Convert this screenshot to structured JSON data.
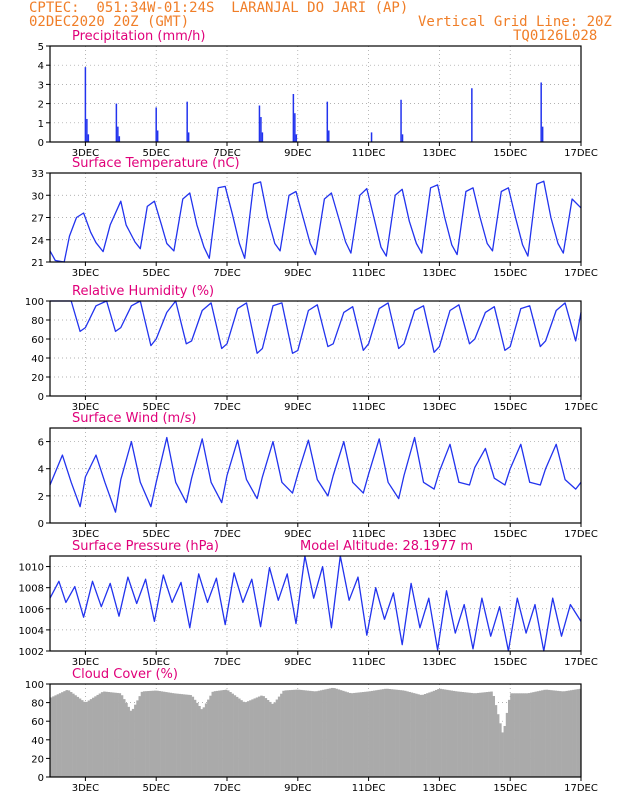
{
  "header": {
    "line1": "CPTEC:  051:34W-01:24S  LARANJAL DO JARI (AP)",
    "line2_left": "02DEC2020 20Z (GMT)",
    "line2_right": "Vertical Grid Line: 20Z",
    "line3_right": "TQ0126L028"
  },
  "colors": {
    "header": "#f07e28",
    "title": "#e0007a",
    "series": "#2233ee",
    "cloud": "#aaaaaa",
    "grid": "#999999",
    "axis": "#000000"
  },
  "time_axis": {
    "start": "02DEC2020 20Z",
    "end": "17DEC2020 20Z",
    "tick_labels": [
      "3DEC",
      "5DEC",
      "7DEC",
      "9DEC",
      "11DEC",
      "13DEC",
      "15DEC",
      "17DEC"
    ]
  },
  "chart_data": [
    {
      "type": "bar",
      "title": "Precipitation (mm/h)",
      "ylim": [
        0,
        5
      ],
      "yticks": [
        0,
        1,
        2,
        3,
        4,
        5
      ],
      "grid": true,
      "color": "#2233ee",
      "x": [
        "03DEC 20Z",
        "03DEC 21Z",
        "03DEC 22Z",
        "04DEC 17Z",
        "04DEC 18Z",
        "04DEC 19Z",
        "05DEC 20Z",
        "05DEC 21Z",
        "06DEC 17Z",
        "06DEC 18Z",
        "08DEC 18Z",
        "08DEC 19Z",
        "08DEC 20Z",
        "09DEC 17Z",
        "09DEC 18Z",
        "09DEC 19Z",
        "10DEC 16Z",
        "10DEC 17Z",
        "11DEC 22Z",
        "12DEC 18Z",
        "12DEC 19Z",
        "14DEC 18Z",
        "16DEC 17Z",
        "16DEC 18Z"
      ],
      "values": [
        3.9,
        1.2,
        0.4,
        2.0,
        0.8,
        0.3,
        1.8,
        0.6,
        2.1,
        0.5,
        1.9,
        1.3,
        0.5,
        2.5,
        1.5,
        0.4,
        2.1,
        0.6,
        0.5,
        2.2,
        0.4,
        2.8,
        3.1,
        0.8
      ]
    },
    {
      "type": "line",
      "title": "Surface Temperature (nC)",
      "ylim": [
        21,
        33
      ],
      "yticks": [
        21,
        24,
        27,
        30,
        33
      ],
      "grid": true,
      "color": "#2233ee",
      "x_days": [
        0,
        0.15,
        0.4,
        0.55,
        0.75,
        0.95,
        1.15,
        1.3,
        1.5,
        1.7,
        2.0,
        2.15,
        2.4,
        2.55,
        2.75,
        2.95,
        3.15,
        3.3,
        3.5,
        3.75,
        3.95,
        4.15,
        4.35,
        4.5,
        4.75,
        4.95,
        5.15,
        5.35,
        5.5,
        5.75,
        5.95,
        6.15,
        6.35,
        6.5,
        6.75,
        6.95,
        7.15,
        7.35,
        7.5,
        7.75,
        7.95,
        8.15,
        8.35,
        8.5,
        8.75,
        8.95,
        9.15,
        9.35,
        9.5,
        9.75,
        9.95,
        10.15,
        10.35,
        10.5,
        10.75,
        10.95,
        11.15,
        11.35,
        11.5,
        11.75,
        11.95,
        12.15,
        12.35,
        12.5,
        12.75,
        12.95,
        13.15,
        13.35,
        13.5,
        13.75,
        13.95,
        14.15,
        14.35,
        14.5,
        14.75,
        15.0
      ],
      "y": [
        22.5,
        21.2,
        20.9,
        24.5,
        27.0,
        27.6,
        25.0,
        23.6,
        22.4,
        26.0,
        29.2,
        26.0,
        23.7,
        22.8,
        28.5,
        29.2,
        26.0,
        23.5,
        22.5,
        29.5,
        30.3,
        26.0,
        23.0,
        21.5,
        31.0,
        31.2,
        27.5,
        23.5,
        21.5,
        31.5,
        31.8,
        27.0,
        23.5,
        22.5,
        30.0,
        30.5,
        27.0,
        23.5,
        22.0,
        29.5,
        30.3,
        27.0,
        23.7,
        22.2,
        30.0,
        30.9,
        27.0,
        23.0,
        21.8,
        30.0,
        30.8,
        26.5,
        23.5,
        22.2,
        31.0,
        31.4,
        27.0,
        23.3,
        22.0,
        30.5,
        31.0,
        27.0,
        23.5,
        22.5,
        30.5,
        31.0,
        27.0,
        23.3,
        21.8,
        31.5,
        31.9,
        27.0,
        23.5,
        22.2,
        29.5,
        28.3
      ]
    },
    {
      "type": "line",
      "title": "Relative Humidity (%)",
      "ylim": [
        0,
        100
      ],
      "yticks": [
        0,
        20,
        40,
        60,
        80,
        100
      ],
      "grid": true,
      "color": "#2233ee",
      "x_days": [
        0,
        0.3,
        0.6,
        0.85,
        1.0,
        1.3,
        1.6,
        1.85,
        2.0,
        2.3,
        2.55,
        2.85,
        3.0,
        3.3,
        3.55,
        3.85,
        4.0,
        4.3,
        4.55,
        4.85,
        5.0,
        5.3,
        5.55,
        5.85,
        6.0,
        6.3,
        6.55,
        6.85,
        7.0,
        7.3,
        7.55,
        7.85,
        8.0,
        8.3,
        8.55,
        8.85,
        9.0,
        9.3,
        9.55,
        9.85,
        10.0,
        10.3,
        10.55,
        10.85,
        11.0,
        11.3,
        11.55,
        11.85,
        12.0,
        12.3,
        12.55,
        12.85,
        13.0,
        13.3,
        13.55,
        13.85,
        14.0,
        14.3,
        14.55,
        14.85,
        15.0
      ],
      "y": [
        100,
        100,
        100,
        68,
        72,
        95,
        100,
        68,
        72,
        95,
        100,
        53,
        60,
        88,
        100,
        55,
        58,
        90,
        98,
        50,
        55,
        92,
        98,
        45,
        50,
        95,
        98,
        45,
        48,
        90,
        96,
        52,
        55,
        88,
        94,
        48,
        55,
        92,
        98,
        50,
        55,
        90,
        95,
        46,
        52,
        90,
        96,
        55,
        60,
        88,
        94,
        48,
        52,
        92,
        95,
        52,
        58,
        90,
        98,
        58,
        88
      ]
    },
    {
      "type": "line",
      "title": "Surface Wind (m/s)",
      "ylim": [
        0,
        7
      ],
      "yticks": [
        0,
        2,
        4,
        6
      ],
      "grid": true,
      "color": "#2233ee",
      "x_days": [
        0,
        0.35,
        0.6,
        0.85,
        1.0,
        1.3,
        1.55,
        1.85,
        2.0,
        2.3,
        2.55,
        2.85,
        3.0,
        3.3,
        3.55,
        3.85,
        4.0,
        4.3,
        4.55,
        4.85,
        5.0,
        5.3,
        5.55,
        5.85,
        6.0,
        6.3,
        6.55,
        6.85,
        7.0,
        7.3,
        7.55,
        7.85,
        8.0,
        8.3,
        8.55,
        8.85,
        9.0,
        9.3,
        9.55,
        9.85,
        10.0,
        10.3,
        10.55,
        10.85,
        11.0,
        11.3,
        11.55,
        11.85,
        12.0,
        12.3,
        12.55,
        12.85,
        13.0,
        13.3,
        13.55,
        13.85,
        14.0,
        14.3,
        14.55,
        14.85,
        15.0
      ],
      "y": [
        2.8,
        5.0,
        3.0,
        1.2,
        3.4,
        5.0,
        3.0,
        0.8,
        3.2,
        6.0,
        3.0,
        1.2,
        3.0,
        6.3,
        3.0,
        1.5,
        3.3,
        6.2,
        3.0,
        1.5,
        3.5,
        6.1,
        3.2,
        1.8,
        3.4,
        6.0,
        3.0,
        2.2,
        3.6,
        6.1,
        3.2,
        2.0,
        3.5,
        6.0,
        3.0,
        2.2,
        3.6,
        6.2,
        3.0,
        1.8,
        3.5,
        6.3,
        3.0,
        2.5,
        3.8,
        5.8,
        3.0,
        2.8,
        4.1,
        5.5,
        3.3,
        2.8,
        4.0,
        5.8,
        3.0,
        2.8,
        4.0,
        5.8,
        3.2,
        2.5,
        3.0
      ]
    },
    {
      "type": "line",
      "title": "Surface Pressure (hPa)",
      "annotation": "Model Altitude: 28.1977 m",
      "ylim": [
        1002,
        1011
      ],
      "yticks": [
        1002,
        1004,
        1006,
        1008,
        1010
      ],
      "grid": true,
      "color": "#2233ee",
      "x_days": [
        0,
        0.25,
        0.45,
        0.7,
        0.95,
        1.2,
        1.45,
        1.7,
        1.95,
        2.2,
        2.45,
        2.7,
        2.95,
        3.2,
        3.45,
        3.7,
        3.95,
        4.2,
        4.45,
        4.7,
        4.95,
        5.2,
        5.45,
        5.7,
        5.95,
        6.2,
        6.45,
        6.7,
        6.95,
        7.2,
        7.45,
        7.7,
        7.95,
        8.2,
        8.45,
        8.7,
        8.95,
        9.2,
        9.45,
        9.7,
        9.95,
        10.2,
        10.45,
        10.7,
        10.95,
        11.2,
        11.45,
        11.7,
        11.95,
        12.2,
        12.45,
        12.7,
        12.95,
        13.2,
        13.45,
        13.7,
        13.95,
        14.2,
        14.45,
        14.7,
        15.0
      ],
      "y": [
        1007,
        1008.6,
        1006.6,
        1008.1,
        1005.2,
        1008.6,
        1006.2,
        1008.4,
        1005.3,
        1009.0,
        1006.5,
        1008.8,
        1004.8,
        1009.2,
        1006.6,
        1008.5,
        1004.2,
        1009.3,
        1006.6,
        1008.9,
        1004.5,
        1009.4,
        1006.6,
        1008.8,
        1004.3,
        1009.9,
        1006.8,
        1009.3,
        1004.6,
        1011.0,
        1007.0,
        1010.0,
        1004.2,
        1011.3,
        1006.8,
        1009.0,
        1003.5,
        1008.0,
        1005.0,
        1007.5,
        1002.6,
        1008.4,
        1004.2,
        1007.0,
        1002.1,
        1007.7,
        1003.7,
        1006.4,
        1002.2,
        1007.0,
        1003.4,
        1006.2,
        1001.8,
        1007.0,
        1003.7,
        1006.4,
        1002.0,
        1007.0,
        1003.4,
        1006.4,
        1004.8
      ]
    },
    {
      "type": "bar",
      "title": "Cloud Cover (%)",
      "ylim": [
        0,
        100
      ],
      "yticks": [
        0,
        20,
        40,
        60,
        80,
        100
      ],
      "grid": true,
      "color": "#aaaaaa",
      "x_days": [
        0,
        0.5,
        1.0,
        1.5,
        2.0,
        2.3,
        2.6,
        3.0,
        3.5,
        4.0,
        4.3,
        4.6,
        5.0,
        5.5,
        6.0,
        6.3,
        6.6,
        7.0,
        7.5,
        8.0,
        8.5,
        9.0,
        9.5,
        10.0,
        10.5,
        10.8,
        11.0,
        11.5,
        12.0,
        12.5,
        12.8,
        13.0,
        13.5,
        14.0,
        14.5,
        15.0
      ],
      "y": [
        85,
        94,
        80,
        92,
        90,
        70,
        92,
        93,
        90,
        88,
        72,
        92,
        94,
        80,
        88,
        78,
        93,
        94,
        92,
        96,
        90,
        92,
        95,
        93,
        88,
        92,
        95,
        92,
        90,
        92,
        45,
        90,
        90,
        94,
        92,
        95
      ]
    }
  ]
}
